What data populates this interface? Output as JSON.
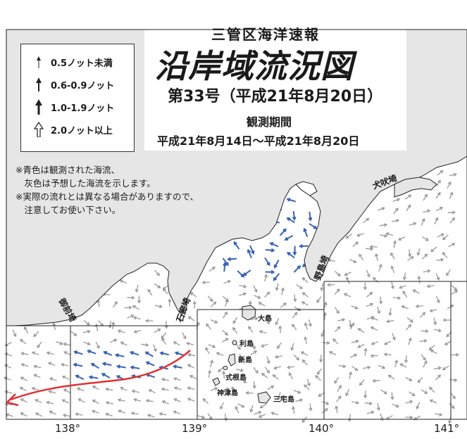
{
  "header": {
    "subtitle": "三管区海洋速報",
    "title": "沿岸域流況図",
    "issue": "第33号（平成21年8月20日）",
    "period_label": "観測期間",
    "period": "平成21年8月14日〜平成21年8月20日"
  },
  "legend": [
    {
      "icon": "thin-arrow-icon",
      "label": "0.5ノット未満"
    },
    {
      "icon": "medium-arrow-icon",
      "label": "0.6-0.9ノット"
    },
    {
      "icon": "thick-arrow-icon",
      "label": "1.0-1.9ノット"
    },
    {
      "icon": "hollow-arrow-icon",
      "label": "2.0ノット以上"
    }
  ],
  "notes": [
    "※青色は観測された海流、",
    "　灰色は予想した海流を示します。",
    "※実際の流れとは異なる場合がありますので、",
    "　注意してお使い下さい。"
  ],
  "places": {
    "inubosaki": "犬吠埼",
    "nojimasaki": "野島埼",
    "irozaki": "石廊埼",
    "omaezaki": "御前埼"
  },
  "islands": {
    "oshima": "大島",
    "toshima": "利島",
    "niijima": "新島",
    "shikinejima": "式根島",
    "kozushima": "神津島",
    "miyakejima": "三宅島"
  },
  "longitudes": [
    "138°",
    "139°",
    "140°",
    "141°"
  ],
  "colors": {
    "land": "#e6e6e6",
    "observed_current": "#3a64b4",
    "predicted_current": "#999999",
    "kuroshio_axis": "#e03030"
  }
}
